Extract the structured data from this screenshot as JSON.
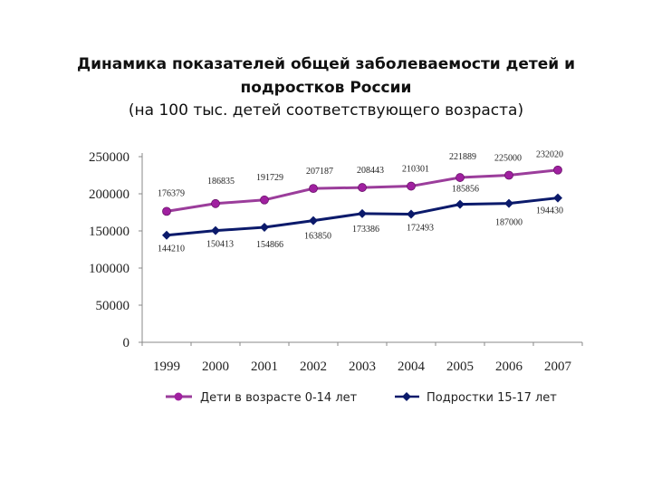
{
  "title_line1": "Динамика показателей общей заболеваемости детей и",
  "title_line2": "подростков России",
  "subtitle": "(на 100 тыс. детей соответствующего возраста)",
  "colors": {
    "children": "#9b3d9b",
    "children_marker": "#a020a0",
    "teens": "#0b1a6b",
    "axis": "#888888"
  },
  "chart_data": {
    "type": "line",
    "categories": [
      "1999",
      "2000",
      "2001",
      "2002",
      "2003",
      "2004",
      "2005",
      "2006",
      "2007"
    ],
    "ylim": [
      0,
      250000
    ],
    "yticks": [
      "0",
      "50000",
      "100000",
      "150000",
      "200000",
      "250000"
    ],
    "grid": false,
    "legend_position": "bottom",
    "series": [
      {
        "name": "Дети в возрасте 0-14 лет",
        "values": [
          176379,
          186835,
          191729,
          207187,
          208443,
          210301,
          221889,
          225000,
          232020
        ],
        "labels": [
          "176379",
          "186835",
          "191729",
          "207187",
          "208443",
          "210301",
          "221889",
          "225000",
          "232020"
        ],
        "marker": "circle"
      },
      {
        "name": "Подростки 15-17 лет",
        "values": [
          144210,
          150413,
          154866,
          163850,
          173386,
          172493,
          185856,
          187000,
          194430
        ],
        "labels": [
          "144210",
          "150413",
          "154866",
          "163850",
          "173386",
          "172493",
          "185856",
          "187000",
          "194430"
        ],
        "marker": "diamond"
      }
    ]
  }
}
